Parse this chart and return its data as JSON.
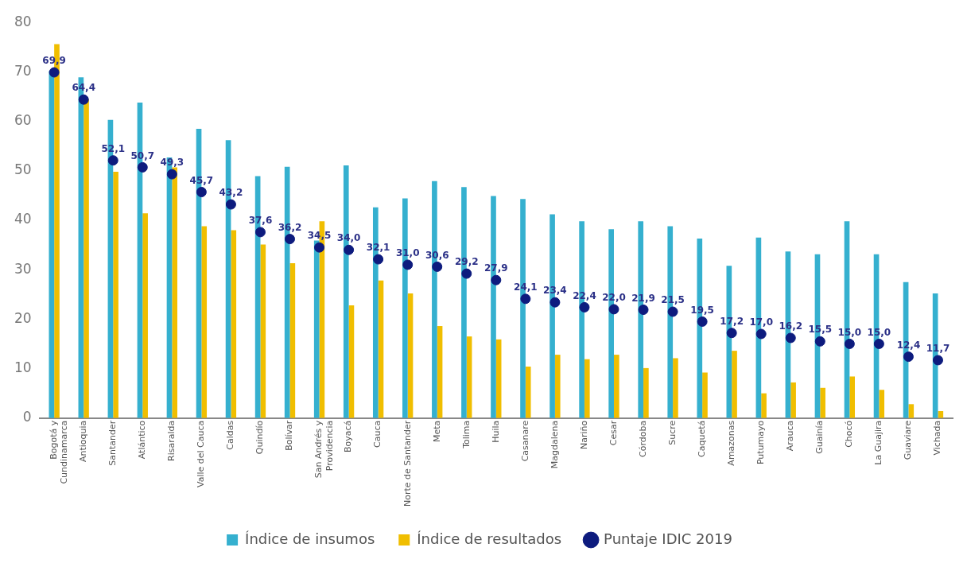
{
  "chart_data": {
    "type": "bar",
    "categories": [
      "Bogotá y\nCundinamarca",
      "Antioquia",
      "Santander",
      "Atlántico",
      "Risaralda",
      "Valle del Cauca",
      "Caldas",
      "Quindío",
      "Bolívar",
      "San Andrés y\nProvidencia",
      "Boyacá",
      "Cauca",
      "Norte de Santander",
      "Meta",
      "Tolima",
      "Huila",
      "Casanare",
      "Magdalena",
      "Nariño",
      "Cesar",
      "Córdoba",
      "Sucre",
      "Caquetá",
      "Amazonas",
      "Putumayo",
      "Arauca",
      "Guainía",
      "Chocó",
      "La Guajira",
      "Guaviare",
      "Vichada"
    ],
    "series": [
      {
        "name": "Índice de insumos",
        "color": "#35b0cf",
        "values": [
          70.2,
          68.9,
          60.3,
          63.8,
          52.7,
          58.5,
          56.2,
          48.9,
          50.8,
          35.9,
          51.1,
          42.6,
          44.4,
          47.9,
          46.7,
          44.9,
          44.3,
          41.2,
          39.8,
          38.2,
          39.8,
          38.8,
          36.3,
          30.8,
          36.5,
          33.7,
          33.1,
          39.8,
          33.1,
          27.5,
          25.2
        ]
      },
      {
        "name": "Índice de resultados",
        "color": "#f0be00",
        "values": [
          75.6,
          64.5,
          49.8,
          41.4,
          50.7,
          38.8,
          38.0,
          35.1,
          31.3,
          39.8,
          22.8,
          27.8,
          25.2,
          18.6,
          16.5,
          15.9,
          10.4,
          12.8,
          11.9,
          12.8,
          10.1,
          12.1,
          9.2,
          13.6,
          5.0,
          7.2,
          6.1,
          8.4,
          5.7,
          2.8,
          1.4
        ]
      },
      {
        "name": "Puntaje IDIC 2019",
        "type": "scatter",
        "color": "#0d1b7e",
        "marker": "circle",
        "x": [
          "Bogotá y\nCundinamarca",
          "Antioquia",
          "Santander",
          "Atlántico",
          "Risaralda",
          "Valle del Cauca",
          "Caldas",
          "Quindío",
          "Bolívar",
          "San Andrés y\nProvidencia",
          "Boyacá",
          "Cauca",
          "Norte de Santander",
          "Meta",
          "Tolima",
          "Huila",
          "Casanare",
          "Magdalena",
          "Nariño",
          "Cesar",
          "Córdoba",
          "Sucre",
          "Caquetá",
          "Amazonas",
          "Putumayo",
          "Arauca",
          "Guainía",
          "Chocó",
          "La Guajira",
          "Guaviare",
          "Vichada"
        ],
        "values": [
          69.9,
          64.4,
          52.1,
          50.7,
          49.3,
          45.7,
          43.2,
          37.6,
          36.2,
          34.5,
          34.0,
          32.1,
          31.0,
          30.6,
          29.2,
          27.9,
          24.1,
          23.4,
          22.4,
          22.0,
          21.9,
          21.5,
          19.5,
          17.2,
          17.0,
          16.2,
          15.5,
          15.0,
          15.0,
          12.4,
          11.7
        ],
        "value_labels": [
          "69,9",
          "64,4",
          "52,1",
          "50,7",
          "49,3",
          "45,7",
          "43,2",
          "37,6",
          "36,2",
          "34,5",
          "34,0",
          "32,1",
          "31,0",
          "30,6",
          "29,2",
          "27,9",
          "24,1",
          "23,4",
          "22,4",
          "22,0",
          "21,9",
          "21,5",
          "19,5",
          "17,2",
          "17,0",
          "16,2",
          "15,5",
          "15,0",
          "15,0",
          "12,4",
          "11,7"
        ]
      }
    ],
    "ylim": [
      0,
      80
    ],
    "yticks": [
      0,
      10,
      20,
      30,
      40,
      50,
      60,
      70,
      80
    ],
    "grid": false,
    "legend": "bottom"
  }
}
